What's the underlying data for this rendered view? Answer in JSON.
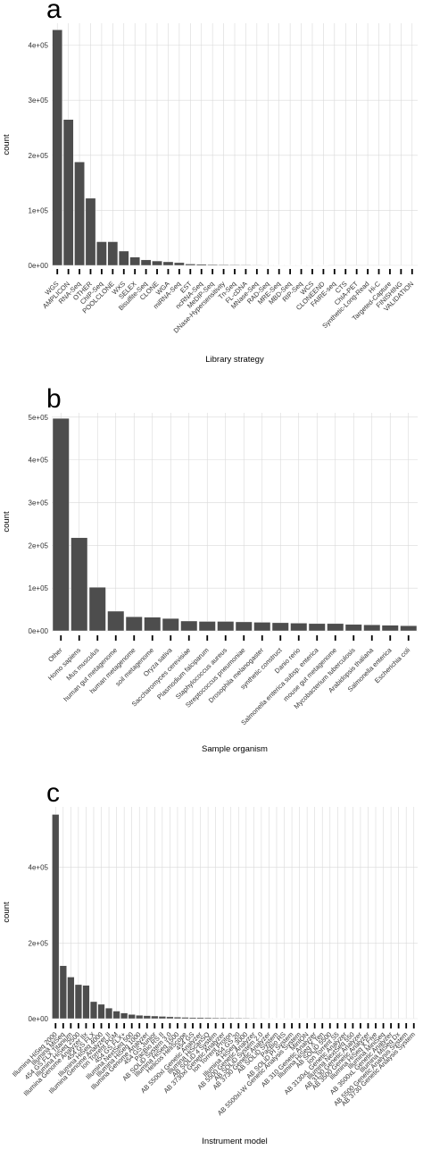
{
  "chart_data": [
    {
      "panel": "a",
      "type": "bar",
      "xlabel": "Library strategy",
      "ylabel": "count",
      "ylim": [
        0,
        440000
      ],
      "yticks": [
        0,
        100000,
        200000,
        300000,
        400000
      ],
      "ytick_labels": [
        "0e+00",
        "1e+05",
        "2e+05",
        "3e+05",
        "4e+05"
      ],
      "grid": true,
      "categories": [
        "WGS",
        "AMPLICON",
        "RNA-Seq",
        "OTHER",
        "ChIP-Seq",
        "POOLCLONE",
        "WXS",
        "SELEX",
        "Bisulfite-Seq",
        "CLONE",
        "WGA",
        "miRNA-Seq",
        "EST",
        "ncRNA-Seq",
        "MeDIP-Seq",
        "DNase-Hypersensitivity",
        "Tn-Seq",
        "FL-cDNA",
        "MNase-Seq",
        "RAD-Seq",
        "MRE-Seq",
        "MBD-Seq",
        "RIP-Seq",
        "WCS",
        "CLONEEND",
        "FAIRE-seq",
        "CTS",
        "ChIA-PET",
        "Synthetic-Long-Read",
        "Hi-C",
        "Targeted-Capture",
        "FINISHING",
        "VALIDATION"
      ],
      "values": [
        428000,
        265000,
        188000,
        122000,
        43000,
        43000,
        26000,
        15000,
        10000,
        8000,
        6500,
        5000,
        2500,
        2000,
        1500,
        1200,
        1000,
        900,
        800,
        700,
        600,
        500,
        450,
        400,
        350,
        300,
        250,
        200,
        150,
        120,
        100,
        80,
        60
      ]
    },
    {
      "panel": "b",
      "type": "bar",
      "xlabel": "Sample organism",
      "ylabel": "count",
      "ylim": [
        0,
        510000
      ],
      "yticks": [
        0,
        100000,
        200000,
        300000,
        400000,
        500000
      ],
      "ytick_labels": [
        "0e+00",
        "1e+05",
        "2e+05",
        "3e+05",
        "4e+05",
        "5e+05"
      ],
      "grid": true,
      "categories": [
        "Other",
        "Homo sapiens",
        "Mus musculus",
        "human gut metagenome",
        "human metagenome",
        "soil metagenome",
        "Oryza sativa",
        "Saccharomyces cerevisiae",
        "Plasmodium falciparum",
        "Staphylococcus aureus",
        "Streptococcus pneumoniae",
        "Drosophila melanogaster",
        "synthetic construct",
        "Danio rerio",
        "Salmonella enterica subsp. enterica",
        "mouse gut metagenome",
        "Mycobacterium tuberculosis",
        "Arabidopsis thaliana",
        "Salmonella enterica",
        "Escherichia coli"
      ],
      "values": [
        497000,
        218000,
        102000,
        46000,
        33000,
        32000,
        29000,
        23000,
        22000,
        22000,
        21000,
        20000,
        19000,
        18000,
        17000,
        17000,
        15000,
        14000,
        13000,
        12000
      ]
    },
    {
      "panel": "c",
      "type": "bar",
      "xlabel": "Instrument model",
      "ylabel": "count",
      "ylim": [
        0,
        560000
      ],
      "yticks": [
        0,
        200000,
        400000
      ],
      "ytick_labels": [
        "0e+00",
        "2e+05",
        "4e+05"
      ],
      "grid": true,
      "categories": [
        "Illumina HiSeq 2000",
        "Illumina MiSeq",
        "454 GS FLX Titanium",
        "Illumina HiSeq 2500",
        "Illumina Genome Analyzer IIx",
        "454 GS FLX",
        "Illumina HiSeq 4000",
        "Illumina Genome Analyzer II",
        "Ion Torrent PGM",
        "454 GS FLX+",
        "Illumina NextSeq 500",
        "Illumina HiSeq 1000",
        "Illumina Genome Analyzer",
        "454 GS Junior",
        "PacBio RS II",
        "AB SOLiD System 3.0",
        "Illumina HiSeq 1500",
        "Helicos HeliScope",
        "454 GS",
        "AB 5500xl Genetic Analyzer",
        "Illumina HiScanSQ",
        "AB SOLiD 4 System",
        "AB 3730xl Genetic Analyzer",
        "Ion Torrent Proton",
        "454 GS 20",
        "Illumina HiSeq 3000",
        "AB 5500 Genetic Analyzer",
        "AB SOLiD System 2.0",
        "AB 3730 Genetic Analyzer",
        "AB SOLiD System",
        "PacBio RS",
        "AB SOLiD PI System",
        "AB 5500xl-W Genetic Analysis System",
        "MinION",
        "AB 310 Genetic Analyzer",
        "Illumina HiSeq X Ten",
        "AB SOLiD 5500",
        "Ion Torrent S5",
        "AB 3130xL Genetic Analyzer",
        "Illumina NextSeq 550",
        "AB 3130 Genetic Analyzer",
        "AB 3500 Genetic Analyzer",
        "Illumina HiSeq X Five",
        "Illumina MiniSeq",
        "AB 3500xL Genetic Analyzer",
        "Illumina MiSeq Dx",
        "AB 5500 Genetic Analysis System",
        "AB 3730 Genetic Analysis System"
      ],
      "values": [
        540000,
        140000,
        110000,
        90000,
        88000,
        45000,
        38000,
        28000,
        20000,
        15000,
        11000,
        9000,
        8000,
        7000,
        6000,
        5000,
        4000,
        3500,
        3000,
        2800,
        2500,
        2200,
        2000,
        1800,
        1600,
        1400,
        1200,
        1100,
        1000,
        900,
        800,
        700,
        600,
        500,
        450,
        400,
        350,
        300,
        250,
        200,
        180,
        160,
        140,
        120,
        100,
        80,
        60,
        40
      ]
    }
  ]
}
